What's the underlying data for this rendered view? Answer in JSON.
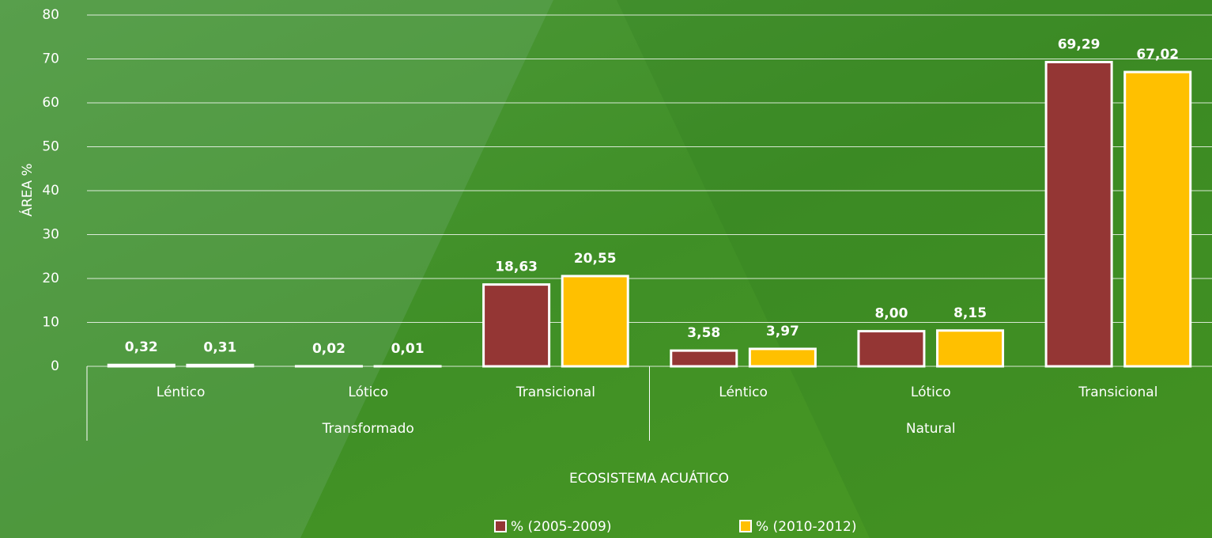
{
  "chart_data": {
    "type": "bar",
    "y_axis_label": "ÁREA %",
    "x_axis_label": "ECOSISTEMA ACUÁTICO",
    "groups": [
      {
        "name": "Transformado",
        "categories": [
          "Léntico",
          "Lótico",
          "Transicional"
        ]
      },
      {
        "name": "Natural",
        "categories": [
          "Léntico",
          "Lótico",
          "Transicional"
        ]
      }
    ],
    "series": [
      {
        "name": "% (2005-2009)",
        "color": "#943634",
        "values": [
          0.32,
          0.02,
          18.63,
          3.58,
          8.0,
          69.29
        ],
        "value_labels": [
          "0,32",
          "0,02",
          "18,63",
          "3,58",
          "8,00",
          "69,29"
        ]
      },
      {
        "name": "% (2010-2012)",
        "color": "#ffc000",
        "values": [
          0.31,
          0.01,
          20.55,
          3.97,
          8.15,
          67.02
        ],
        "value_labels": [
          "0,31",
          "0,01",
          "20,55",
          "3,97",
          "8,15",
          "67,02"
        ]
      }
    ],
    "ylim": [
      0,
      80
    ],
    "yticks": [
      0,
      10,
      20,
      30,
      40,
      50,
      60,
      70,
      80
    ],
    "grid": true,
    "legend": "bottom"
  }
}
